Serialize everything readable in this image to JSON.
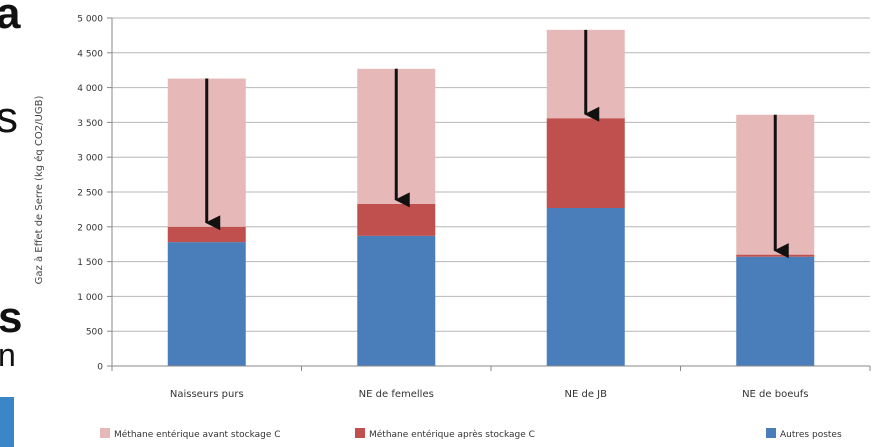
{
  "background_fragments": {
    "left_letters": [
      "a",
      "s",
      "s",
      "n"
    ],
    "left_box_color": "#3a86c8"
  },
  "chart_data": {
    "type": "bar",
    "stacked": true,
    "title": "",
    "xlabel": "",
    "ylabel": "Gaz à Effet de Serre (kg éq CO2/UGB)",
    "ylim": [
      0,
      5000
    ],
    "yticks": [
      0,
      500,
      1000,
      1500,
      2000,
      2500,
      3000,
      3500,
      4000,
      4500,
      5000
    ],
    "ytick_labels": [
      "0",
      "500",
      "1 000",
      "1 500",
      "2 000",
      "2 500",
      "3 000",
      "3 500",
      "4 000",
      "4 500",
      "5 000"
    ],
    "grid": true,
    "legend_position": "bottom",
    "categories": [
      "Naisseurs purs",
      "NE de femelles",
      "NE de JB",
      "NE de boeufs"
    ],
    "series": [
      {
        "name": "Autres postes",
        "color": "#4a7ebb",
        "values": [
          1780,
          1870,
          2270,
          1570
        ]
      },
      {
        "name": "Méthane entérique après stockage C",
        "color": "#c0504d",
        "values": [
          220,
          460,
          1290,
          30
        ]
      },
      {
        "name": "Méthane entérique avant stockage C",
        "color": "#e6b9b8",
        "values": [
          2130,
          1940,
          1270,
          2010
        ]
      }
    ],
    "arrows": [
      {
        "category": "Naisseurs purs",
        "from": 4130,
        "to": 2000
      },
      {
        "category": "NE de femelles",
        "from": 4270,
        "to": 2330
      },
      {
        "category": "NE de JB",
        "from": 4830,
        "to": 3560
      },
      {
        "category": "NE de boeufs",
        "from": 3610,
        "to": 1600
      }
    ],
    "legend": [
      {
        "label": "Méthane entérique avant stockage C",
        "color": "#e6b9b8"
      },
      {
        "label": "Méthane entérique après stockage C",
        "color": "#c0504d"
      },
      {
        "label": "Autres postes",
        "color": "#4a7ebb"
      }
    ]
  }
}
